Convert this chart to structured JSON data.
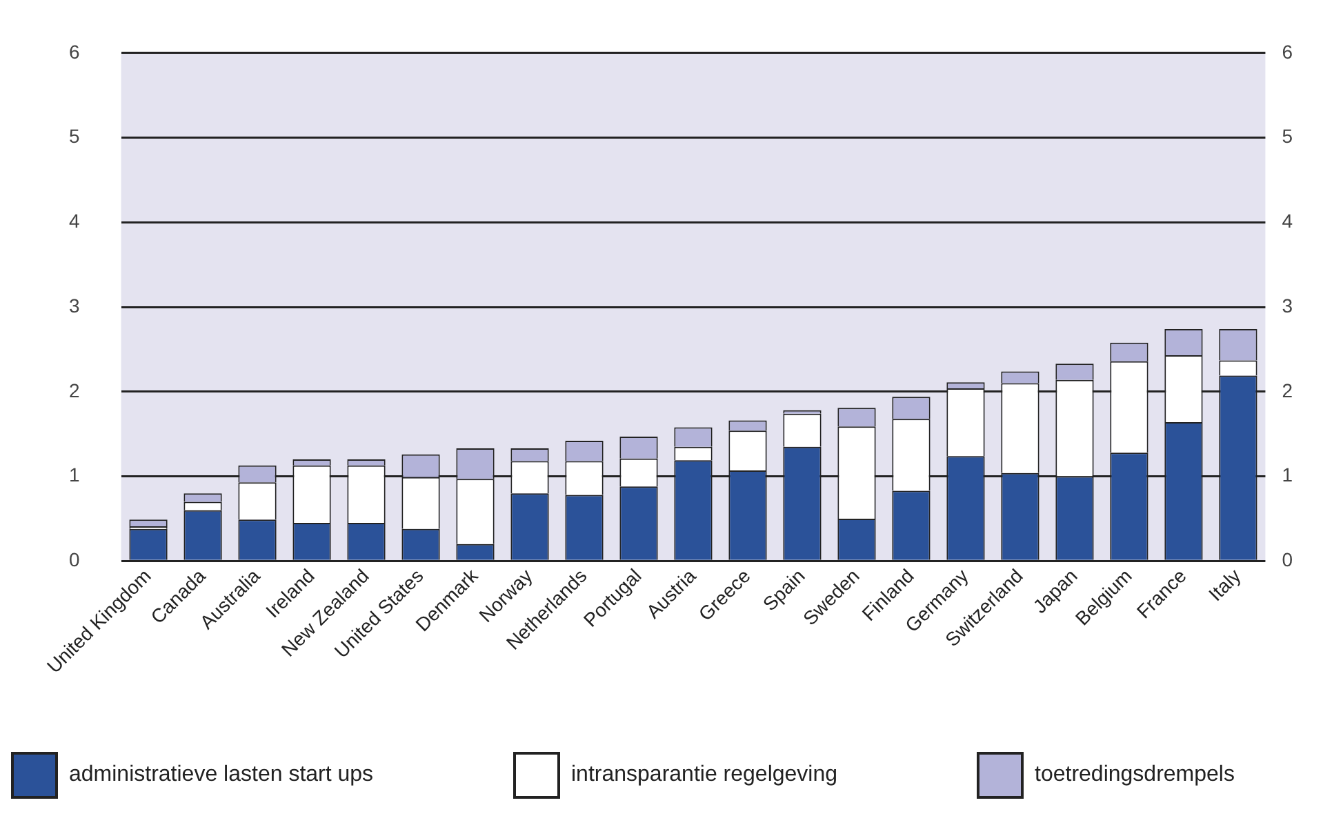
{
  "chart_data": {
    "type": "bar",
    "stacked": true,
    "categories": [
      "United Kingdom",
      "Canada",
      "Australia",
      "Ireland",
      "New Zealand",
      "United States",
      "Denmark",
      "Norway",
      "Netherlands",
      "Portugal",
      "Austria",
      "Greece",
      "Spain",
      "Sweden",
      "Finland",
      "Germany",
      "Switzerland",
      "Japan",
      "Belgium",
      "France",
      "Italy"
    ],
    "series": [
      {
        "name": "administratieve lasten start ups",
        "color": "#2b5299",
        "values": [
          0.38,
          0.6,
          0.49,
          0.45,
          0.45,
          0.38,
          0.2,
          0.8,
          0.78,
          0.88,
          1.19,
          1.07,
          1.35,
          0.5,
          0.83,
          1.24,
          1.04,
          1.0,
          1.28,
          1.64,
          2.19
        ]
      },
      {
        "name": "intransparantie regelgeving",
        "color": "#ffffff",
        "values": [
          0.03,
          0.1,
          0.44,
          0.68,
          0.68,
          0.61,
          0.77,
          0.38,
          0.4,
          0.33,
          0.16,
          0.47,
          0.39,
          1.09,
          0.85,
          0.8,
          1.06,
          1.14,
          1.08,
          0.79,
          0.18
        ]
      },
      {
        "name": "toetredingsdrempels",
        "color": "#b3b3d9",
        "values": [
          0.08,
          0.1,
          0.2,
          0.07,
          0.07,
          0.27,
          0.36,
          0.15,
          0.24,
          0.26,
          0.23,
          0.12,
          0.04,
          0.22,
          0.26,
          0.07,
          0.14,
          0.19,
          0.22,
          0.31,
          0.37
        ]
      }
    ],
    "ylim": [
      0,
      6
    ],
    "yticks": [
      0,
      1,
      2,
      3,
      4,
      5,
      6
    ],
    "y2lim": [
      0,
      6
    ],
    "y2ticks": [
      0,
      1,
      2,
      3,
      4,
      5,
      6
    ],
    "grid": "y",
    "legend": "bottom"
  }
}
